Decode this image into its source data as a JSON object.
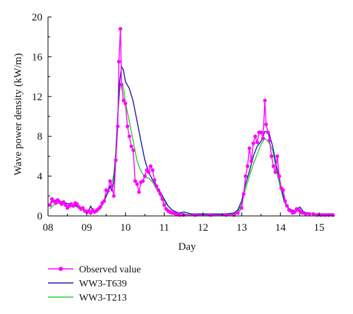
{
  "chart_data": {
    "type": "line",
    "xlabel": "Day",
    "ylabel": "Wave power density (kW/m)",
    "xlim": [
      8.0,
      15.4
    ],
    "ylim": [
      0,
      20
    ],
    "x_ticks": [
      8,
      9,
      10,
      11,
      12,
      13,
      14,
      15
    ],
    "x_tick_labels": [
      "08",
      "09",
      "10",
      "11",
      "12",
      "13",
      "14",
      "15"
    ],
    "y_ticks": [
      0,
      4,
      8,
      12,
      16,
      20
    ],
    "y_tick_labels": [
      "0",
      "4",
      "8",
      "12",
      "16",
      "20"
    ],
    "grid": false,
    "legend_position": "bottom-left",
    "series": [
      {
        "name": "Observed value",
        "color": "#ff00ff",
        "marker": "circle",
        "points": [
          [
            8.05,
            1.1
          ],
          [
            8.1,
            1.7
          ],
          [
            8.15,
            1.5
          ],
          [
            8.2,
            1.3
          ],
          [
            8.25,
            1.6
          ],
          [
            8.3,
            1.4
          ],
          [
            8.35,
            1.2
          ],
          [
            8.4,
            1.4
          ],
          [
            8.45,
            1.1
          ],
          [
            8.5,
            0.8
          ],
          [
            8.55,
            1.0
          ],
          [
            8.6,
            1.2
          ],
          [
            8.65,
            1.0
          ],
          [
            8.7,
            1.3
          ],
          [
            8.75,
            1.2
          ],
          [
            8.8,
            0.9
          ],
          [
            8.85,
            0.7
          ],
          [
            8.9,
            0.8
          ],
          [
            8.95,
            0.5
          ],
          [
            9.0,
            0.4
          ],
          [
            9.05,
            0.5
          ],
          [
            9.1,
            0.3
          ],
          [
            9.15,
            0.6
          ],
          [
            9.2,
            0.4
          ],
          [
            9.25,
            0.5
          ],
          [
            9.3,
            0.7
          ],
          [
            9.35,
            0.9
          ],
          [
            9.4,
            1.3
          ],
          [
            9.45,
            1.5
          ],
          [
            9.5,
            2.6
          ],
          [
            9.55,
            2.5
          ],
          [
            9.6,
            3.5
          ],
          [
            9.65,
            3.0
          ],
          [
            9.7,
            2.0
          ],
          [
            9.75,
            5.6
          ],
          [
            9.8,
            9.0
          ],
          [
            9.83,
            15.5
          ],
          [
            9.87,
            18.8
          ],
          [
            9.9,
            13.2
          ],
          [
            9.95,
            11.6
          ],
          [
            10.0,
            11.3
          ],
          [
            10.05,
            9.0
          ],
          [
            10.1,
            8.0
          ],
          [
            10.15,
            7.0
          ],
          [
            10.2,
            6.6
          ],
          [
            10.25,
            3.5
          ],
          [
            10.3,
            3.2
          ],
          [
            10.35,
            2.4
          ],
          [
            10.4,
            3.4
          ],
          [
            10.45,
            3.5
          ],
          [
            10.5,
            4.0
          ],
          [
            10.55,
            4.6
          ],
          [
            10.6,
            4.4
          ],
          [
            10.65,
            5.0
          ],
          [
            10.7,
            4.6
          ],
          [
            10.75,
            3.6
          ],
          [
            10.8,
            3.0
          ],
          [
            10.85,
            2.6
          ],
          [
            10.9,
            2.2
          ],
          [
            10.95,
            1.7
          ],
          [
            11.0,
            1.1
          ],
          [
            11.05,
            0.7
          ],
          [
            11.1,
            0.5
          ],
          [
            11.15,
            0.4
          ],
          [
            11.2,
            0.3
          ],
          [
            11.25,
            0.3
          ],
          [
            11.3,
            0.2
          ],
          [
            11.35,
            0.2
          ],
          [
            11.4,
            0.1
          ],
          [
            11.5,
            0.1
          ],
          [
            11.8,
            0.1
          ],
          [
            12.2,
            0.1
          ],
          [
            12.6,
            0.1
          ],
          [
            12.8,
            0.1
          ],
          [
            12.9,
            0.3
          ],
          [
            13.0,
            0.8
          ],
          [
            13.05,
            2.2
          ],
          [
            13.1,
            4.0
          ],
          [
            13.15,
            5.0
          ],
          [
            13.2,
            6.8
          ],
          [
            13.25,
            5.5
          ],
          [
            13.3,
            7.3
          ],
          [
            13.35,
            8.0
          ],
          [
            13.4,
            7.4
          ],
          [
            13.45,
            8.4
          ],
          [
            13.5,
            8.4
          ],
          [
            13.55,
            7.8
          ],
          [
            13.6,
            11.6
          ],
          [
            13.63,
            9.2
          ],
          [
            13.68,
            8.4
          ],
          [
            13.72,
            7.6
          ],
          [
            13.77,
            6.0
          ],
          [
            13.82,
            5.0
          ],
          [
            13.87,
            4.4
          ],
          [
            13.92,
            6.0
          ],
          [
            13.97,
            4.0
          ],
          [
            14.02,
            2.8
          ],
          [
            14.07,
            2.6
          ],
          [
            14.12,
            1.5
          ],
          [
            14.17,
            1.0
          ],
          [
            14.22,
            0.6
          ],
          [
            14.27,
            0.5
          ],
          [
            14.32,
            0.3
          ],
          [
            14.37,
            0.4
          ],
          [
            14.42,
            0.7
          ],
          [
            14.47,
            0.6
          ],
          [
            14.52,
            0.4
          ],
          [
            14.57,
            0.3
          ],
          [
            14.65,
            0.2
          ],
          [
            14.75,
            0.2
          ],
          [
            14.85,
            0.2
          ],
          [
            14.95,
            0.1
          ],
          [
            15.05,
            0.1
          ],
          [
            15.15,
            0.1
          ],
          [
            15.25,
            0.1
          ],
          [
            15.35,
            0.1
          ]
        ]
      },
      {
        "name": "WW3-T639",
        "color": "#1b1bb0",
        "marker": "none",
        "points": [
          [
            8.05,
            1.2
          ],
          [
            8.15,
            1.6
          ],
          [
            8.25,
            1.5
          ],
          [
            8.35,
            1.4
          ],
          [
            8.45,
            1.3
          ],
          [
            8.55,
            1.2
          ],
          [
            8.65,
            1.1
          ],
          [
            8.75,
            1.0
          ],
          [
            8.85,
            0.8
          ],
          [
            8.95,
            0.6
          ],
          [
            9.05,
            0.5
          ],
          [
            9.1,
            1.0
          ],
          [
            9.15,
            0.6
          ],
          [
            9.2,
            0.5
          ],
          [
            9.3,
            0.8
          ],
          [
            9.4,
            1.2
          ],
          [
            9.5,
            2.0
          ],
          [
            9.6,
            3.0
          ],
          [
            9.65,
            2.5
          ],
          [
            9.7,
            3.6
          ],
          [
            9.75,
            6.0
          ],
          [
            9.8,
            10.0
          ],
          [
            9.85,
            13.5
          ],
          [
            9.9,
            15.0
          ],
          [
            9.95,
            14.6
          ],
          [
            10.0,
            13.5
          ],
          [
            10.1,
            12.8
          ],
          [
            10.2,
            11.5
          ],
          [
            10.3,
            9.5
          ],
          [
            10.4,
            7.5
          ],
          [
            10.5,
            5.6
          ],
          [
            10.6,
            4.4
          ],
          [
            10.7,
            3.6
          ],
          [
            10.8,
            3.0
          ],
          [
            10.9,
            2.4
          ],
          [
            11.0,
            1.7
          ],
          [
            11.1,
            1.0
          ],
          [
            11.2,
            0.6
          ],
          [
            11.3,
            0.4
          ],
          [
            11.4,
            0.3
          ],
          [
            11.5,
            0.4
          ],
          [
            11.6,
            0.3
          ],
          [
            11.7,
            0.2
          ],
          [
            11.8,
            0.2
          ],
          [
            12.0,
            0.2
          ],
          [
            12.3,
            0.2
          ],
          [
            12.6,
            0.2
          ],
          [
            12.8,
            0.3
          ],
          [
            12.9,
            0.6
          ],
          [
            13.0,
            1.5
          ],
          [
            13.1,
            3.2
          ],
          [
            13.2,
            4.5
          ],
          [
            13.3,
            6.0
          ],
          [
            13.4,
            7.0
          ],
          [
            13.5,
            7.5
          ],
          [
            13.6,
            8.5
          ],
          [
            13.7,
            8.4
          ],
          [
            13.8,
            7.0
          ],
          [
            13.9,
            5.0
          ],
          [
            14.0,
            3.2
          ],
          [
            14.1,
            1.5
          ],
          [
            14.2,
            0.8
          ],
          [
            14.3,
            0.6
          ],
          [
            14.4,
            0.5
          ],
          [
            14.5,
            0.9
          ],
          [
            14.6,
            0.4
          ],
          [
            14.7,
            0.3
          ],
          [
            14.8,
            0.2
          ],
          [
            14.9,
            0.2
          ],
          [
            15.0,
            0.2
          ],
          [
            15.2,
            0.2
          ],
          [
            15.35,
            0.2
          ]
        ]
      },
      {
        "name": "WW3-T213",
        "color": "#33cc33",
        "marker": "none",
        "points": [
          [
            8.05,
            0.7
          ],
          [
            8.15,
            1.1
          ],
          [
            8.25,
            1.3
          ],
          [
            8.35,
            1.2
          ],
          [
            8.45,
            1.1
          ],
          [
            8.55,
            1.0
          ],
          [
            8.65,
            1.0
          ],
          [
            8.75,
            0.9
          ],
          [
            8.85,
            0.7
          ],
          [
            8.95,
            0.5
          ],
          [
            9.05,
            0.4
          ],
          [
            9.15,
            0.4
          ],
          [
            9.25,
            0.5
          ],
          [
            9.35,
            0.7
          ],
          [
            9.45,
            1.4
          ],
          [
            9.55,
            2.4
          ],
          [
            9.65,
            3.3
          ],
          [
            9.7,
            4.2
          ],
          [
            9.75,
            6.5
          ],
          [
            9.8,
            10.0
          ],
          [
            9.85,
            12.6
          ],
          [
            9.9,
            13.4
          ],
          [
            9.95,
            12.8
          ],
          [
            10.0,
            11.4
          ],
          [
            10.1,
            9.5
          ],
          [
            10.2,
            7.5
          ],
          [
            10.3,
            5.5
          ],
          [
            10.4,
            4.5
          ],
          [
            10.5,
            3.9
          ],
          [
            10.6,
            3.8
          ],
          [
            10.7,
            3.4
          ],
          [
            10.8,
            2.7
          ],
          [
            10.9,
            2.0
          ],
          [
            11.0,
            1.5
          ],
          [
            11.1,
            1.0
          ],
          [
            11.2,
            0.6
          ],
          [
            11.3,
            0.4
          ],
          [
            11.4,
            0.3
          ],
          [
            11.5,
            0.2
          ],
          [
            11.7,
            0.1
          ],
          [
            12.0,
            0.1
          ],
          [
            12.3,
            0.1
          ],
          [
            12.6,
            0.1
          ],
          [
            12.8,
            0.2
          ],
          [
            12.9,
            0.4
          ],
          [
            13.0,
            1.2
          ],
          [
            13.1,
            2.7
          ],
          [
            13.2,
            4.0
          ],
          [
            13.3,
            5.2
          ],
          [
            13.4,
            6.2
          ],
          [
            13.5,
            7.2
          ],
          [
            13.6,
            7.8
          ],
          [
            13.7,
            7.4
          ],
          [
            13.8,
            6.6
          ],
          [
            13.9,
            4.5
          ],
          [
            14.0,
            2.8
          ],
          [
            14.1,
            1.4
          ],
          [
            14.2,
            0.8
          ],
          [
            14.3,
            0.5
          ],
          [
            14.4,
            0.4
          ],
          [
            14.5,
            0.6
          ],
          [
            14.6,
            0.3
          ],
          [
            14.7,
            0.2
          ],
          [
            14.85,
            0.2
          ],
          [
            15.0,
            0.1
          ],
          [
            15.2,
            0.1
          ],
          [
            15.35,
            0.1
          ]
        ]
      }
    ]
  }
}
